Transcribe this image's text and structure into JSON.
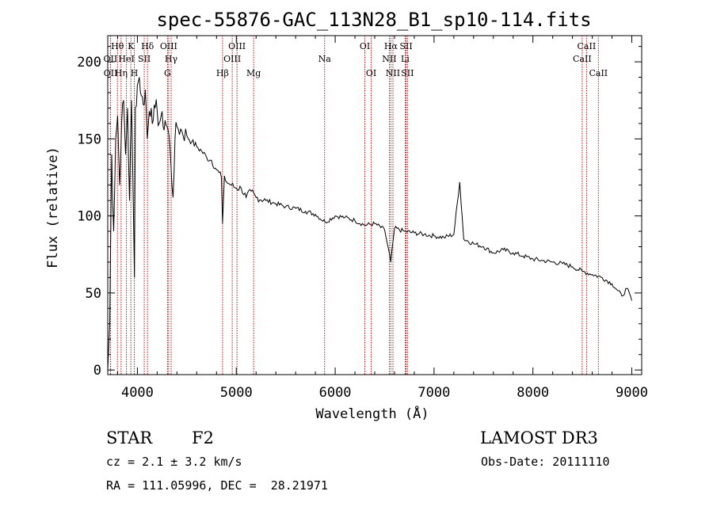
{
  "chart_data": {
    "type": "line",
    "title": "spec-55876-GAC_113N28_B1_sp10-114.fits",
    "xlabel": "Wavelength (Å)",
    "ylabel": "Flux (relative)",
    "xlim": [
      3700,
      9100
    ],
    "ylim": [
      -3,
      217
    ],
    "xticks": [
      4000,
      5000,
      6000,
      7000,
      8000,
      9000
    ],
    "yticks": [
      0,
      50,
      100,
      150,
      200
    ],
    "grid": false,
    "series": [
      {
        "name": "spectrum",
        "x": [
          3700,
          3720,
          3740,
          3760,
          3780,
          3800,
          3820,
          3840,
          3860,
          3880,
          3900,
          3920,
          3940,
          3960,
          3970,
          3980,
          4000,
          4020,
          4040,
          4060,
          4080,
          4100,
          4120,
          4140,
          4160,
          4180,
          4200,
          4220,
          4240,
          4260,
          4280,
          4300,
          4320,
          4340,
          4360,
          4380,
          4400,
          4450,
          4500,
          4550,
          4600,
          4650,
          4700,
          4750,
          4800,
          4850,
          4861,
          4880,
          4900,
          4950,
          5000,
          5050,
          5100,
          5150,
          5200,
          5300,
          5400,
          5500,
          5600,
          5700,
          5800,
          5900,
          6000,
          6100,
          6200,
          6300,
          6400,
          6500,
          6563,
          6600,
          6700,
          6800,
          6900,
          7000,
          7100,
          7200,
          7260,
          7300,
          7400,
          7500,
          7600,
          7700,
          7800,
          7900,
          8000,
          8100,
          8200,
          8300,
          8400,
          8500,
          8600,
          8700,
          8800,
          8850,
          8900,
          8950,
          9000
        ],
        "y": [
          0,
          30,
          140,
          90,
          150,
          165,
          120,
          160,
          175,
          140,
          170,
          110,
          175,
          100,
          60,
          170,
          185,
          190,
          178,
          172,
          182,
          150,
          168,
          170,
          162,
          170,
          168,
          160,
          165,
          158,
          162,
          158,
          152,
          132,
          112,
          150,
          158,
          155,
          152,
          148,
          145,
          142,
          138,
          136,
          130,
          125,
          95,
          126,
          122,
          120,
          118,
          118,
          112,
          116,
          112,
          110,
          108,
          106,
          105,
          103,
          101,
          96,
          100,
          99,
          97,
          94,
          95,
          91,
          70,
          92,
          90,
          89,
          88,
          87,
          86,
          88,
          122,
          85,
          82,
          80,
          76,
          78,
          76,
          74,
          72,
          71,
          70,
          69,
          67,
          64,
          62,
          60,
          56,
          52,
          48,
          53,
          45
        ]
      }
    ],
    "lines": [
      {
        "label": "Hθ",
        "x": 3798,
        "row": 1
      },
      {
        "label": "OII",
        "x": 3727,
        "row": 2
      },
      {
        "label": "OII",
        "x": 3729,
        "row": 3
      },
      {
        "label": "Hη",
        "x": 3835,
        "row": 3
      },
      {
        "label": "HeI",
        "x": 3889,
        "row": 2
      },
      {
        "label": "K",
        "x": 3934,
        "row": 1
      },
      {
        "label": "H",
        "x": 3969,
        "row": 3
      },
      {
        "label": "SII",
        "x": 4069,
        "row": 2
      },
      {
        "label": "Hδ",
        "x": 4102,
        "row": 1
      },
      {
        "label": "OIII",
        "x": 4316,
        "row": 1
      },
      {
        "label": "Hγ",
        "x": 4341,
        "row": 2
      },
      {
        "label": "G",
        "x": 4304,
        "row": 3
      },
      {
        "label": "Hβ",
        "x": 4861,
        "row": 3
      },
      {
        "label": "OIII",
        "x": 5007,
        "row": 1
      },
      {
        "label": "OIII",
        "x": 4959,
        "row": 2
      },
      {
        "label": "Mg",
        "x": 5175,
        "row": 3
      },
      {
        "label": "Na",
        "x": 5893,
        "row": 2
      },
      {
        "label": "OI",
        "x": 6300,
        "row": 1
      },
      {
        "label": "OI",
        "x": 6364,
        "row": 3
      },
      {
        "label": "Hα",
        "x": 6563,
        "row": 1
      },
      {
        "label": "NII",
        "x": 6548,
        "row": 2
      },
      {
        "label": "NII",
        "x": 6584,
        "row": 3
      },
      {
        "label": "SII",
        "x": 6717,
        "row": 1
      },
      {
        "label": "Li",
        "x": 6708,
        "row": 2
      },
      {
        "label": "SII",
        "x": 6731,
        "row": 3
      },
      {
        "label": "CaII",
        "x": 8542,
        "row": 1
      },
      {
        "label": "CaII",
        "x": 8498,
        "row": 2
      },
      {
        "label": "CaII",
        "x": 8662,
        "row": 3
      }
    ],
    "line_color": "#c81010"
  },
  "info": {
    "object_class": "STAR",
    "subclass": "F2",
    "survey": "LAMOST DR3",
    "cz": "cz = 2.1 ± 3.2 km/s",
    "obs_date": "Obs-Date: 20111110",
    "coords": "RA = 111.05996, DEC =  28.21971"
  }
}
